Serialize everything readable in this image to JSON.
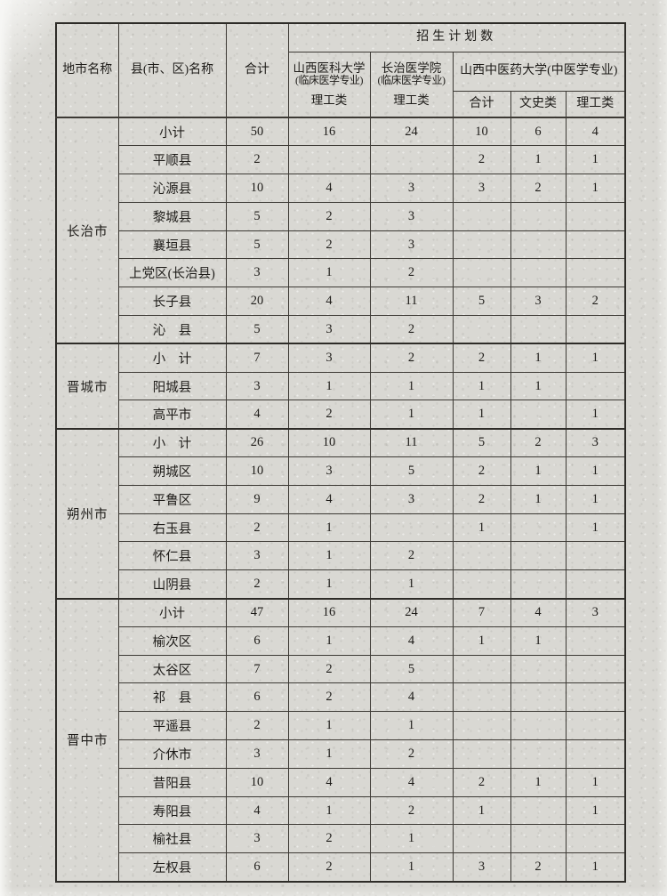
{
  "colors": {
    "paper": "#d9d8d3",
    "ink": "#1e1c19",
    "line": "#3d3a35"
  },
  "table": {
    "enrollment_plan_header": "招生计划数",
    "columns": {
      "city": "地市名称",
      "county": "县(市、区)名称",
      "total": "合计",
      "uni1_name": "山西医科大学",
      "uni1_major": "(临床医学专业)",
      "uni1_track": "理工类",
      "uni2_name": "长治医学院",
      "uni2_major": "(临床医学专业)",
      "uni2_track": "理工类",
      "uni3_name": "山西中医药大学(中医学专业)",
      "uni3_sub": [
        "合计",
        "文史类",
        "理工类"
      ]
    },
    "groups": [
      {
        "city": "长治市",
        "rows": [
          [
            "小计",
            "50",
            "16",
            "24",
            "10",
            "6",
            "4"
          ],
          [
            "平顺县",
            "2",
            "",
            "",
            "2",
            "1",
            "1"
          ],
          [
            "沁源县",
            "10",
            "4",
            "3",
            "3",
            "2",
            "1"
          ],
          [
            "黎城县",
            "5",
            "2",
            "3",
            "",
            "",
            ""
          ],
          [
            "襄垣县",
            "5",
            "2",
            "3",
            "",
            "",
            ""
          ],
          [
            "上党区(长治县)",
            "3",
            "1",
            "2",
            "",
            "",
            ""
          ],
          [
            "长子县",
            "20",
            "4",
            "11",
            "5",
            "3",
            "2"
          ],
          [
            "沁　县",
            "5",
            "3",
            "2",
            "",
            "",
            ""
          ]
        ]
      },
      {
        "city": "晋城市",
        "rows": [
          [
            "小　计",
            "7",
            "3",
            "2",
            "2",
            "1",
            "1"
          ],
          [
            "阳城县",
            "3",
            "1",
            "1",
            "1",
            "1",
            ""
          ],
          [
            "高平市",
            "4",
            "2",
            "1",
            "1",
            "",
            "1"
          ]
        ]
      },
      {
        "city": "朔州市",
        "rows": [
          [
            "小　计",
            "26",
            "10",
            "11",
            "5",
            "2",
            "3"
          ],
          [
            "朔城区",
            "10",
            "3",
            "5",
            "2",
            "1",
            "1"
          ],
          [
            "平鲁区",
            "9",
            "4",
            "3",
            "2",
            "1",
            "1"
          ],
          [
            "右玉县",
            "2",
            "1",
            "",
            "1",
            "",
            "1"
          ],
          [
            "怀仁县",
            "3",
            "1",
            "2",
            "",
            "",
            ""
          ],
          [
            "山阴县",
            "2",
            "1",
            "1",
            "",
            "",
            ""
          ]
        ]
      },
      {
        "city": "晋中市",
        "rows": [
          [
            "小计",
            "47",
            "16",
            "24",
            "7",
            "4",
            "3"
          ],
          [
            "榆次区",
            "6",
            "1",
            "4",
            "1",
            "1",
            ""
          ],
          [
            "太谷区",
            "7",
            "2",
            "5",
            "",
            "",
            ""
          ],
          [
            "祁　县",
            "6",
            "2",
            "4",
            "",
            "",
            ""
          ],
          [
            "平遥县",
            "2",
            "1",
            "1",
            "",
            "",
            ""
          ],
          [
            "介休市",
            "3",
            "1",
            "2",
            "",
            "",
            ""
          ],
          [
            "昔阳县",
            "10",
            "4",
            "4",
            "2",
            "1",
            "1"
          ],
          [
            "寿阳县",
            "4",
            "1",
            "2",
            "1",
            "",
            "1"
          ],
          [
            "榆社县",
            "3",
            "2",
            "1",
            "",
            "",
            ""
          ],
          [
            "左权县",
            "6",
            "2",
            "1",
            "3",
            "2",
            "1"
          ]
        ]
      }
    ]
  }
}
